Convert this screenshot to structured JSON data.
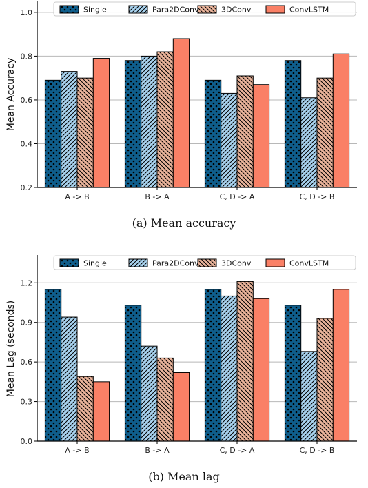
{
  "chart_data": [
    {
      "type": "bar",
      "caption": "(a) Mean accuracy",
      "ylabel": "Mean Accuracy",
      "xlabel": "",
      "categories": [
        "A -> B",
        "B -> A",
        "C, D -> A",
        "C, D -> B"
      ],
      "ylim": [
        0.2,
        1.05
      ],
      "yticks": [
        0.2,
        0.4,
        0.6,
        0.8,
        1.0
      ],
      "ytick_labels": [
        "0.2",
        "0.4",
        "0.6",
        "0.8",
        "1.0"
      ],
      "grid": "horizontal",
      "legend_position": "top",
      "series": [
        {
          "name": "Single",
          "values": [
            0.69,
            0.78,
            0.69,
            0.78
          ]
        },
        {
          "name": "Para2DConv",
          "values": [
            0.73,
            0.8,
            0.63,
            0.61
          ]
        },
        {
          "name": "3DConv",
          "values": [
            0.7,
            0.82,
            0.71,
            0.7
          ]
        },
        {
          "name": "ConvLSTM",
          "values": [
            0.79,
            0.88,
            0.67,
            0.81
          ]
        }
      ]
    },
    {
      "type": "bar",
      "caption": "(b) Mean lag",
      "ylabel": "Mean Lag (seconds)",
      "xlabel": "",
      "categories": [
        "A -> B",
        "B -> A",
        "C, D -> A",
        "C, D -> B"
      ],
      "ylim": [
        0.0,
        1.4
      ],
      "yticks": [
        0.0,
        0.3,
        0.6,
        0.9,
        1.2
      ],
      "ytick_labels": [
        "0.0",
        "0.3",
        "0.6",
        "0.9",
        "1.2"
      ],
      "grid": "horizontal",
      "legend_position": "top",
      "series": [
        {
          "name": "Single",
          "values": [
            1.15,
            1.03,
            1.15,
            1.03
          ]
        },
        {
          "name": "Para2DConv",
          "values": [
            0.94,
            0.72,
            1.1,
            0.68
          ]
        },
        {
          "name": "3DConv",
          "values": [
            0.49,
            0.63,
            1.21,
            0.93
          ]
        },
        {
          "name": "ConvLSTM",
          "values": [
            0.45,
            0.52,
            1.08,
            1.15
          ]
        }
      ]
    }
  ],
  "series_styles": [
    {
      "fill": "#0f5e8c",
      "pattern": "dots",
      "icon": "dot-pattern"
    },
    {
      "fill": "#a8d2ee",
      "pattern": "diagonal-right",
      "icon": "hatch-pattern"
    },
    {
      "fill": "#e9b39a",
      "pattern": "diagonal-left",
      "icon": "hatch-pattern"
    },
    {
      "fill": "#fa8066",
      "pattern": "none",
      "icon": "solid"
    }
  ]
}
